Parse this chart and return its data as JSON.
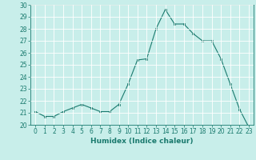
{
  "x": [
    0,
    1,
    2,
    3,
    4,
    5,
    6,
    7,
    8,
    9,
    10,
    11,
    12,
    13,
    14,
    15,
    16,
    17,
    18,
    19,
    20,
    21,
    22,
    23
  ],
  "y": [
    21.1,
    20.7,
    20.7,
    21.1,
    21.4,
    21.7,
    21.4,
    21.1,
    21.1,
    21.7,
    23.4,
    25.4,
    25.5,
    28.0,
    29.6,
    28.4,
    28.4,
    27.6,
    27.0,
    27.0,
    25.5,
    23.4,
    21.3,
    19.8
  ],
  "xlabel": "Humidex (Indice chaleur)",
  "ylim": [
    20,
    30
  ],
  "xlim": [
    -0.5,
    23.5
  ],
  "yticks": [
    20,
    21,
    22,
    23,
    24,
    25,
    26,
    27,
    28,
    29,
    30
  ],
  "xticks": [
    0,
    1,
    2,
    3,
    4,
    5,
    6,
    7,
    8,
    9,
    10,
    11,
    12,
    13,
    14,
    15,
    16,
    17,
    18,
    19,
    20,
    21,
    22,
    23
  ],
  "line_color": "#1a7a6e",
  "marker_color": "#1a7a6e",
  "bg_color": "#c8eeea",
  "grid_color": "#ffffff",
  "tick_color": "#1a7a6e",
  "label_color": "#1a7a6e",
  "xlabel_fontsize": 6.5,
  "tick_fontsize": 5.5
}
